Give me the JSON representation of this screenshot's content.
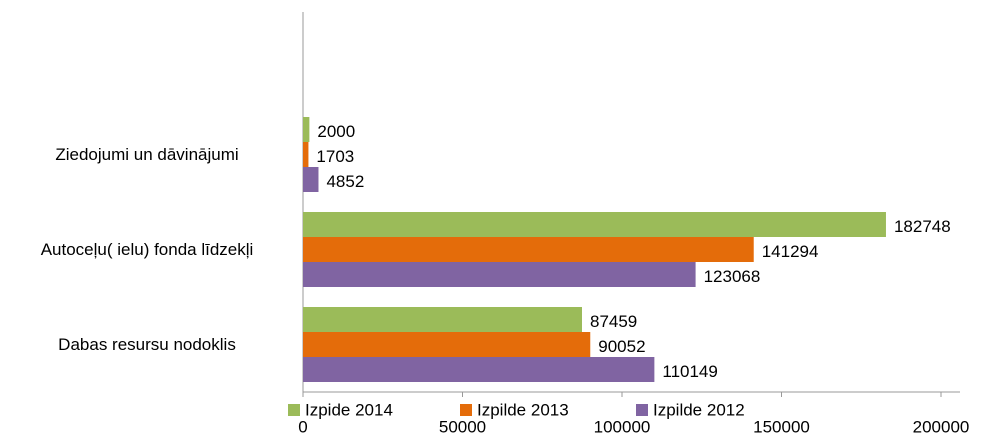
{
  "chart_data": {
    "type": "bar",
    "orientation": "horizontal",
    "categories": [
      null,
      "Ziedojumi un dāvinājumi",
      "Autoceļu( ielu) fonda līdzekļi",
      "Dabas resursu nodoklis"
    ],
    "series": [
      {
        "name": "Izpide 2014",
        "color": "#9bbb59",
        "values": [
          null,
          2000,
          182748,
          87459
        ]
      },
      {
        "name": "Izpilde 2013",
        "color": "#e46c0a",
        "values": [
          null,
          1703,
          141294,
          90052
        ]
      },
      {
        "name": "Izpilde 2012",
        "color": "#8064a2",
        "values": [
          null,
          4852,
          123068,
          110149
        ]
      }
    ],
    "xlim": [
      0,
      200000
    ],
    "xticks": [
      0,
      50000,
      100000,
      150000,
      200000
    ],
    "legend": "bottom"
  }
}
